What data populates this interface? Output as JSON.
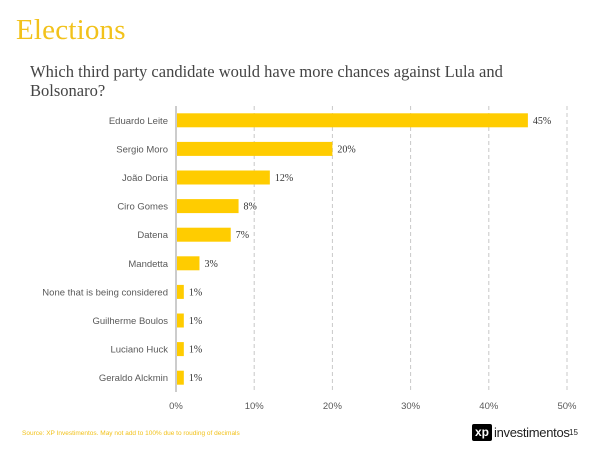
{
  "page": {
    "title": "Elections",
    "subtitle": "Which third party candidate would have more chances against Lula and Bolsonaro?",
    "footer_note": "Source: XP Investimentos. May not add to 100% due to rouding of decimals",
    "logo_mark": "xp",
    "logo_text": "investimentos",
    "page_number": "15"
  },
  "colors": {
    "bar": "#ffcc00",
    "grid": "#c8c8c8",
    "axis": "#999999",
    "label": "#595959",
    "title": "#f2c21b"
  },
  "chart_data": {
    "type": "bar",
    "orientation": "horizontal",
    "title": "",
    "xlabel": "",
    "ylabel": "",
    "categories": [
      "Eduardo Leite",
      "Sergio Moro",
      "João Doria",
      "Ciro Gomes",
      "Datena",
      "Mandetta",
      "None that is being considered",
      "Guilherme Boulos",
      "Luciano Huck",
      "Geraldo Alckmin"
    ],
    "values": [
      45,
      20,
      12,
      8,
      7,
      3,
      1,
      1,
      1,
      1
    ],
    "data_labels": [
      "45%",
      "20%",
      "12%",
      "8%",
      "7%",
      "3%",
      "1%",
      "1%",
      "1%",
      "1%"
    ],
    "xlim": [
      0,
      50
    ],
    "x_ticks": [
      0,
      10,
      20,
      30,
      40,
      50
    ],
    "x_tick_labels": [
      "0%",
      "10%",
      "20%",
      "30%",
      "40%",
      "50%"
    ],
    "grid": "vertical dashed",
    "legend": "none"
  }
}
